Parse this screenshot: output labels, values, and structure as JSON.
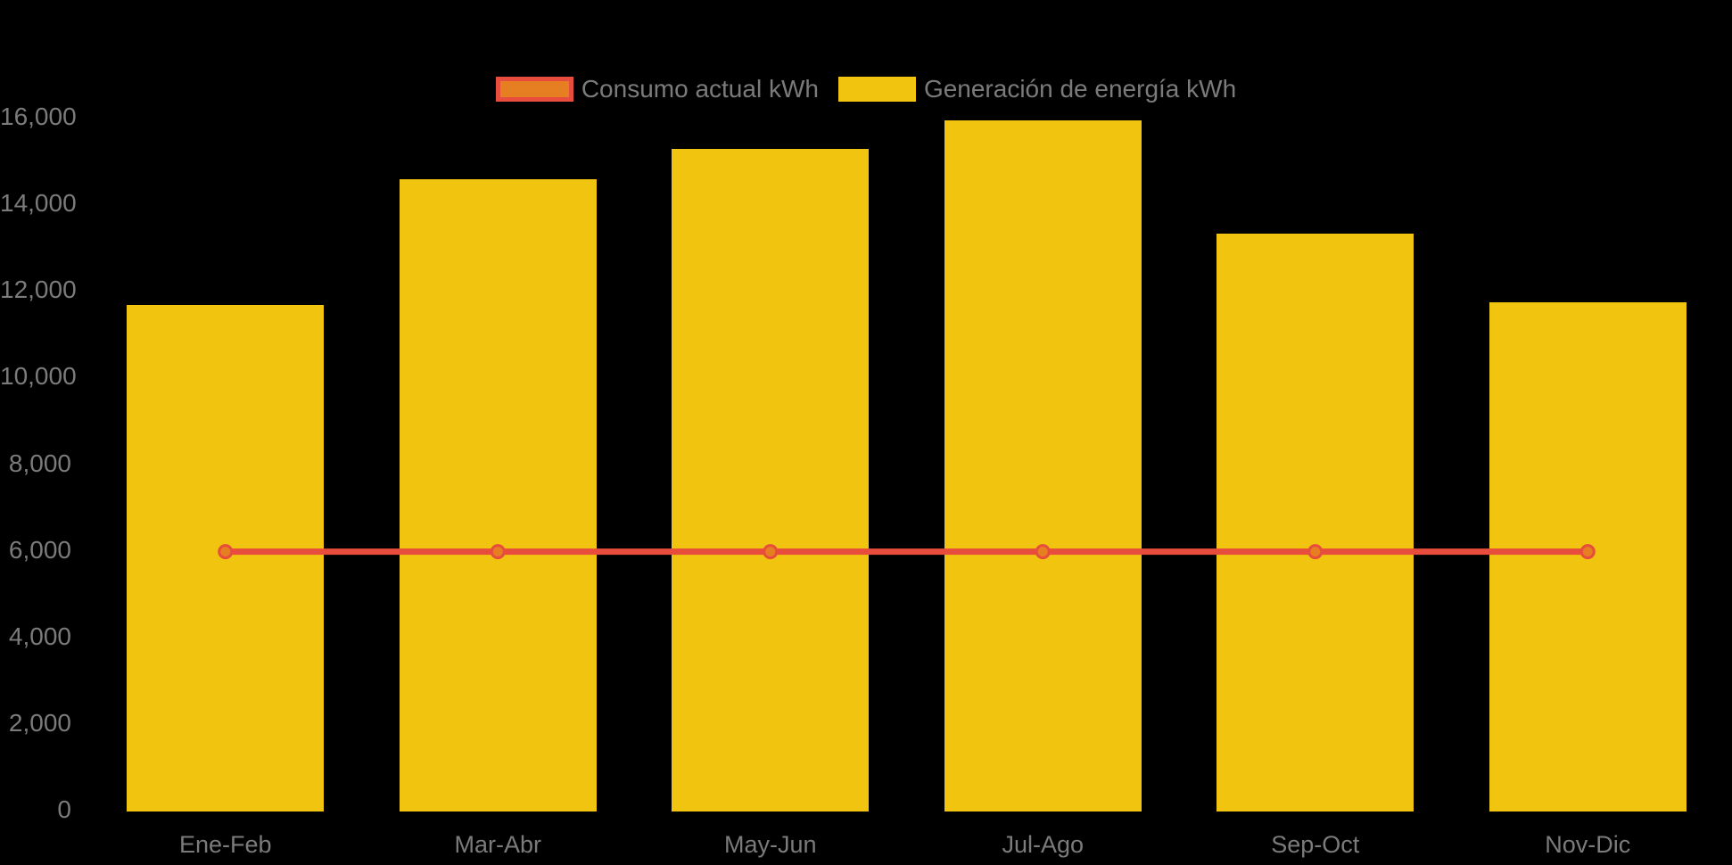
{
  "app": {
    "background_color": "#000000",
    "text_color": "#7b7b7b"
  },
  "legend": {
    "position": "top-center",
    "items": [
      {
        "label": "Consumo actual kWh",
        "series_type": "line",
        "swatch_fill": "#E67E22",
        "swatch_border": "#E74C3C"
      },
      {
        "label": "Generación de energía kWh",
        "series_type": "bar",
        "swatch_fill": "#F1C40F",
        "swatch_border": "#F1C40F"
      }
    ]
  },
  "chart_data": {
    "type": "bar",
    "subtype": "bar-line-combo",
    "title": "",
    "xlabel": "",
    "ylabel": "",
    "categories": [
      "Ene-Feb",
      "Mar-Abr",
      "May-Jun",
      "Jul-Ago",
      "Sep-Oct",
      "Nov-Dic"
    ],
    "series": [
      {
        "name": "Consumo actual kWh",
        "type": "line",
        "color": "#E74C3C",
        "marker_fill": "#E67E22",
        "marker_stroke": "#E74C3C",
        "values": [
          6000,
          6000,
          6000,
          6000,
          6000,
          6000
        ]
      },
      {
        "name": "Generación de energía kWh",
        "type": "bar",
        "color": "#F1C40F",
        "values": [
          11700,
          14600,
          15300,
          15950,
          13350,
          11750
        ]
      }
    ],
    "ylim": [
      0,
      16000
    ],
    "yticks": [
      0,
      2000,
      4000,
      6000,
      8000,
      10000,
      12000,
      14000,
      16000
    ],
    "ytick_labels": [
      "0",
      "2,000",
      "4,000",
      "6,000",
      "8,000",
      "10,000",
      "12,000",
      "14,000",
      "16,000"
    ],
    "grid": false,
    "legend_position": "top"
  }
}
